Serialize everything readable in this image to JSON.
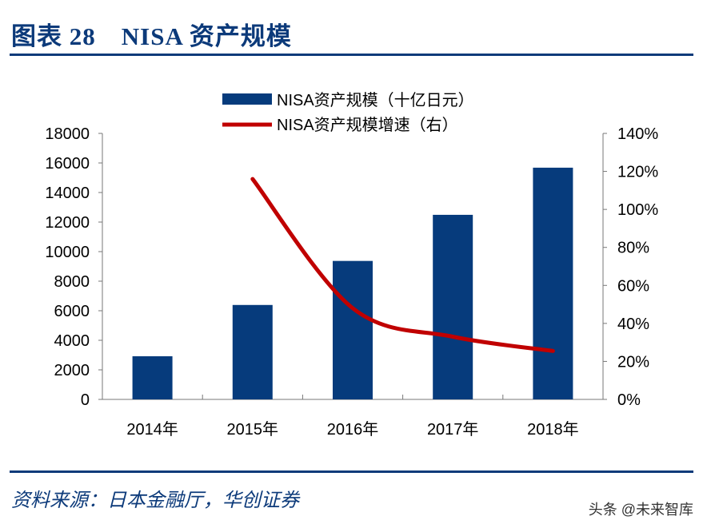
{
  "title": "图表 28　NISA 资产规模",
  "source": "资料来源：日本金融厅，华创证券",
  "watermark": "头条 @未来智库",
  "chart_data": {
    "type": "bar+line",
    "categories": [
      "2014年",
      "2015年",
      "2016年",
      "2017年",
      "2018年"
    ],
    "series": [
      {
        "name": "NISA资产规模（十亿日元）",
        "type": "bar",
        "axis": "left",
        "color": "#063b7c",
        "values": [
          2920,
          6390,
          9370,
          12490,
          15680
        ]
      },
      {
        "name": "NISA资产规模增速（右）",
        "type": "line",
        "axis": "right",
        "color": "#c00000",
        "values": [
          null,
          116,
          48,
          33,
          25.5
        ]
      }
    ],
    "left_axis": {
      "ylim": [
        0,
        18000
      ],
      "ticks": [
        "0",
        "2000",
        "4000",
        "6000",
        "8000",
        "10000",
        "12000",
        "14000",
        "16000",
        "18000"
      ]
    },
    "right_axis": {
      "ylim": [
        0,
        140
      ],
      "ticks": [
        "0%",
        "20%",
        "40%",
        "60%",
        "80%",
        "100%",
        "120%",
        "140%"
      ]
    },
    "legend": "top-center",
    "grid": false
  }
}
